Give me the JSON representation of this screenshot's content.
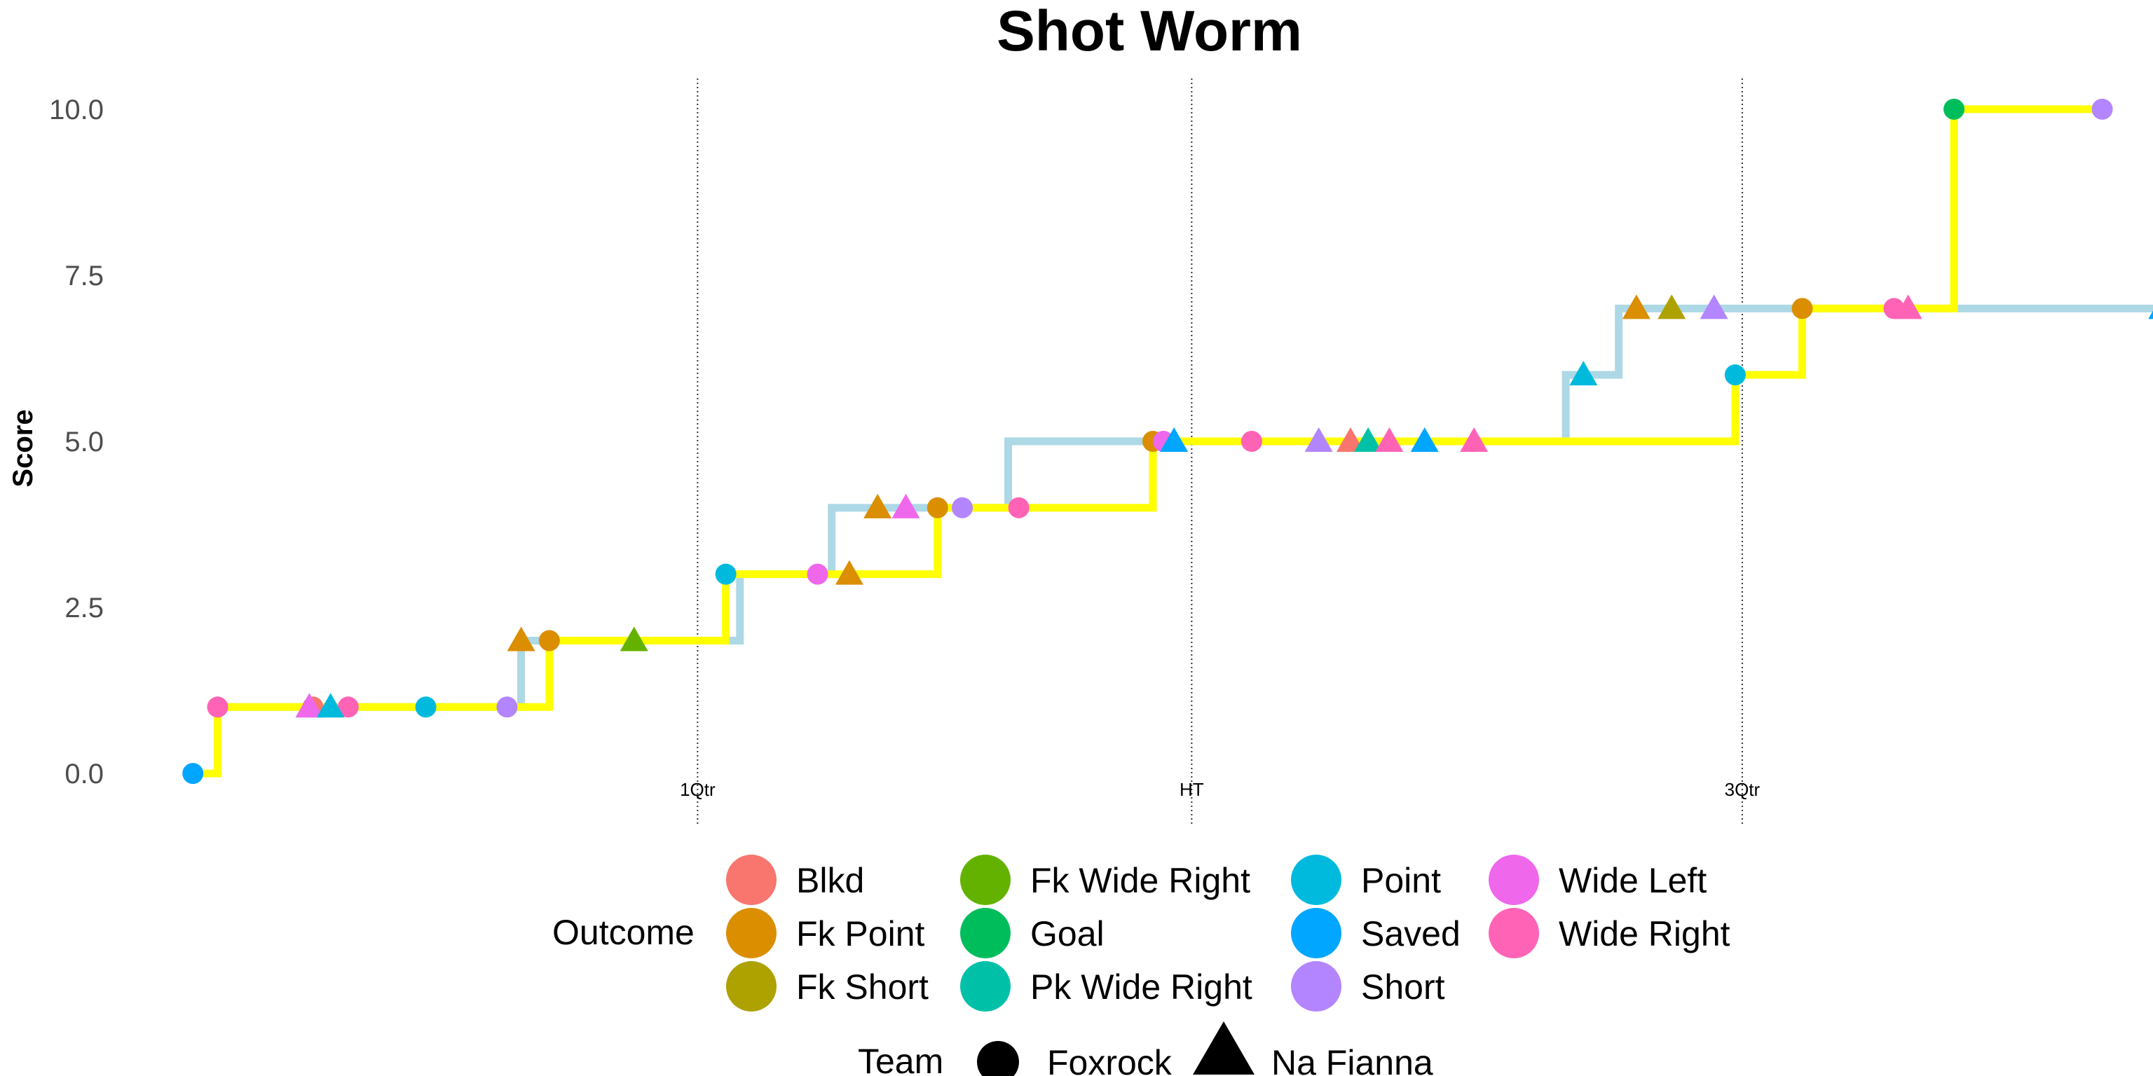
{
  "chart_data": {
    "type": "line",
    "title": "Shot Worm",
    "xlabel": "",
    "ylabel": "Score",
    "ylim": [
      -0.8,
      10.8
    ],
    "yticks": [
      0.0,
      2.5,
      5.0,
      7.5,
      10.0
    ],
    "ytick_labels": [
      "0.0",
      "2.5",
      "5.0",
      "7.5",
      "10.0"
    ],
    "xlim": [
      0,
      56
    ],
    "x_axis_labels_shown": false,
    "grid": false,
    "markers": [
      {
        "label": "1Qtr",
        "x": 15
      },
      {
        "label": "HT",
        "x": 29
      },
      {
        "label": "3Qtr",
        "x": 44.6
      }
    ],
    "series": [
      {
        "name": "Foxrock",
        "line_color": "#FFFF00",
        "steps": [
          [
            0.7,
            0
          ],
          [
            1.4,
            1
          ],
          [
            10.8,
            2
          ],
          [
            15.8,
            3
          ],
          [
            21.8,
            4
          ],
          [
            27.9,
            5
          ],
          [
            30.7,
            5
          ],
          [
            44.4,
            6
          ],
          [
            46.3,
            7
          ],
          [
            50.6,
            10
          ],
          [
            54.8,
            10
          ]
        ],
        "shots": [
          {
            "x": 0.7,
            "y": 0,
            "outcome": "Saved"
          },
          {
            "x": 1.4,
            "y": 1,
            "outcome": "Wide Right"
          },
          {
            "x": 4.1,
            "y": 1,
            "outcome": "Blkd"
          },
          {
            "x": 5.1,
            "y": 1,
            "outcome": "Wide Right"
          },
          {
            "x": 7.3,
            "y": 1,
            "outcome": "Point"
          },
          {
            "x": 9.6,
            "y": 1,
            "outcome": "Short"
          },
          {
            "x": 10.8,
            "y": 2,
            "outcome": "Fk Point"
          },
          {
            "x": 15.8,
            "y": 3,
            "outcome": "Point"
          },
          {
            "x": 18.4,
            "y": 3,
            "outcome": "Wide Left"
          },
          {
            "x": 21.8,
            "y": 4,
            "outcome": "Fk Point"
          },
          {
            "x": 22.5,
            "y": 4,
            "outcome": "Short"
          },
          {
            "x": 24.1,
            "y": 4,
            "outcome": "Wide Right"
          },
          {
            "x": 27.9,
            "y": 5,
            "outcome": "Fk Point"
          },
          {
            "x": 28.2,
            "y": 5,
            "outcome": "Wide Left"
          },
          {
            "x": 30.7,
            "y": 5,
            "outcome": "Wide Right"
          },
          {
            "x": 44.4,
            "y": 6,
            "outcome": "Point"
          },
          {
            "x": 46.3,
            "y": 7,
            "outcome": "Fk Point"
          },
          {
            "x": 48.9,
            "y": 7,
            "outcome": "Wide Right"
          },
          {
            "x": 50.6,
            "y": 10,
            "outcome": "Goal"
          },
          {
            "x": 54.8,
            "y": 10,
            "outcome": "Short"
          }
        ]
      },
      {
        "name": "Na Fianna",
        "line_color": "#ADD8E6",
        "steps": [
          [
            1.4,
            1
          ],
          [
            4.0,
            1
          ],
          [
            10.0,
            2
          ],
          [
            16.2,
            3
          ],
          [
            18.8,
            4
          ],
          [
            23.8,
            5
          ],
          [
            39.6,
            6
          ],
          [
            41.1,
            7
          ],
          [
            58.2,
            7
          ]
        ],
        "shots": [
          {
            "x": 4.0,
            "y": 1,
            "outcome": "Wide Left"
          },
          {
            "x": 10.0,
            "y": 2,
            "outcome": "Fk Point"
          },
          {
            "x": 13.2,
            "y": 2,
            "outcome": "Fk Wide Right"
          },
          {
            "x": 19.3,
            "y": 3,
            "outcome": "Fk Point"
          },
          {
            "x": 20.1,
            "y": 4,
            "outcome": "Fk Point"
          },
          {
            "x": 20.9,
            "y": 4,
            "outcome": "Wide Left"
          },
          {
            "x": 28.5,
            "y": 5,
            "outcome": "Saved"
          },
          {
            "x": 32.6,
            "y": 5,
            "outcome": "Short"
          },
          {
            "x": 33.5,
            "y": 5,
            "outcome": "Blkd"
          },
          {
            "x": 34.0,
            "y": 5,
            "outcome": "Pk Wide Right"
          },
          {
            "x": 34.6,
            "y": 5,
            "outcome": "Wide Right"
          },
          {
            "x": 35.6,
            "y": 5,
            "outcome": "Saved"
          },
          {
            "x": 40.1,
            "y": 6,
            "outcome": "Point"
          },
          {
            "x": 41.6,
            "y": 7,
            "outcome": "Fk Point"
          },
          {
            "x": 42.6,
            "y": 7,
            "outcome": "Fk Short"
          },
          {
            "x": 43.8,
            "y": 7,
            "outcome": "Short"
          },
          {
            "x": 49.3,
            "y": 7,
            "outcome": "Wide Right"
          },
          {
            "x": 56.5,
            "y": 7,
            "outcome": "Saved"
          },
          {
            "x": 37.0,
            "y": 5,
            "outcome": "Wide Right"
          },
          {
            "x": 4.6,
            "y": 1,
            "outcome": "Point"
          }
        ]
      }
    ],
    "legend": {
      "position": "bottom",
      "outcome_title": "Outcome",
      "team_title": "Team",
      "outcomes": [
        {
          "label": "Blkd",
          "color": "#F8766D"
        },
        {
          "label": "Fk Point",
          "color": "#DB8E00"
        },
        {
          "label": "Fk Short",
          "color": "#AEA200"
        },
        {
          "label": "Fk Wide Right",
          "color": "#64B200"
        },
        {
          "label": "Goal",
          "color": "#00BD5C"
        },
        {
          "label": "Pk Wide Right",
          "color": "#00C1A7"
        },
        {
          "label": "Point",
          "color": "#00BADE"
        },
        {
          "label": "Saved",
          "color": "#00A6FF"
        },
        {
          "label": "Short",
          "color": "#B385FF"
        },
        {
          "label": "Wide Left",
          "color": "#EF67EB"
        },
        {
          "label": "Wide Right",
          "color": "#FF63B6"
        }
      ],
      "teams": [
        {
          "label": "Foxrock",
          "shape": "circle"
        },
        {
          "label": "Na Fianna",
          "shape": "triangle"
        }
      ]
    }
  }
}
